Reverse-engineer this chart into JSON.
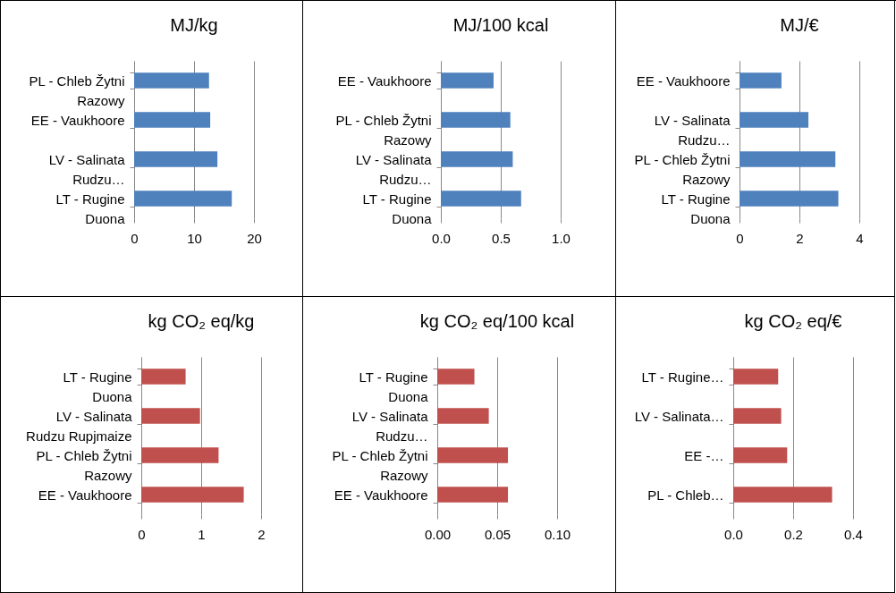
{
  "chart_data": [
    {
      "type": "bar",
      "orientation": "horizontal",
      "title": "MJ/kg",
      "categories": [
        "PL - Chleb Žytni Razowy",
        "EE - Vaukhoore",
        "LV - Salinata Rudzu…",
        "LT - Rugine Duona"
      ],
      "values": [
        12.5,
        12.7,
        13.9,
        16.3
      ],
      "color": "#4f81bd",
      "xlim": [
        0,
        20
      ],
      "xticks": [
        0,
        10,
        20
      ],
      "grid": "x"
    },
    {
      "type": "bar",
      "orientation": "horizontal",
      "title": "MJ/100 kcal",
      "categories": [
        "EE - Vaukhoore",
        "PL - Chleb Žytni Razowy",
        "LV - Salinata Rudzu…",
        "LT - Rugine Duona"
      ],
      "values": [
        0.44,
        0.58,
        0.6,
        0.67
      ],
      "color": "#4f81bd",
      "xlim": [
        0,
        1
      ],
      "xticks": [
        {
          "value": 0,
          "label": "0.0"
        },
        {
          "value": 0.5,
          "label": "0.5"
        },
        {
          "value": 1,
          "label": "1.0"
        }
      ],
      "grid": "x"
    },
    {
      "type": "bar",
      "orientation": "horizontal",
      "title": "MJ/€",
      "categories": [
        "EE - Vaukhoore",
        "LV - Salinata Rudzu…",
        "PL - Chleb Žytni Razowy",
        "LT - Rugine Duona"
      ],
      "values": [
        1.4,
        2.3,
        3.2,
        3.3
      ],
      "color": "#4f81bd",
      "xlim": [
        0,
        4
      ],
      "xticks": [
        0,
        2,
        4
      ],
      "grid": "x"
    },
    {
      "type": "bar",
      "orientation": "horizontal",
      "title": "kg CO₂ eq/kg",
      "categories": [
        "LT - Rugine Duona",
        "LV - Salinata Rudzu Rupjmaize",
        "PL - Chleb Žytni Razowy",
        "EE - Vaukhoore"
      ],
      "values": [
        0.74,
        0.98,
        1.29,
        1.71
      ],
      "color": "#c0504d",
      "xlim": [
        0,
        2
      ],
      "xticks": [
        0,
        1,
        2
      ],
      "grid": "x"
    },
    {
      "type": "bar",
      "orientation": "horizontal",
      "title": "kg CO₂ eq/100 kcal",
      "categories": [
        "LT - Rugine Duona",
        "LV - Salinata Rudzu…",
        "PL - Chleb Žytni Razowy",
        "EE - Vaukhoore"
      ],
      "values": [
        0.031,
        0.043,
        0.059,
        0.059
      ],
      "color": "#c0504d",
      "xlim": [
        0,
        0.1
      ],
      "xticks": [
        {
          "value": 0,
          "label": "0.00"
        },
        {
          "value": 0.05,
          "label": "0.05"
        },
        {
          "value": 0.1,
          "label": "0.10"
        }
      ],
      "grid": "x"
    },
    {
      "type": "bar",
      "orientation": "horizontal",
      "title": "kg CO₂ eq/€",
      "categories": [
        "LT - Rugine…",
        "LV - Salinata…",
        "EE -…",
        "PL - Chleb…"
      ],
      "values": [
        0.15,
        0.16,
        0.18,
        0.33
      ],
      "color": "#c0504d",
      "xlim": [
        0,
        0.4
      ],
      "xticks": [
        {
          "value": 0,
          "label": "0.0"
        },
        {
          "value": 0.2,
          "label": "0.2"
        },
        {
          "value": 0.4,
          "label": "0.4"
        }
      ],
      "grid": "x"
    }
  ]
}
